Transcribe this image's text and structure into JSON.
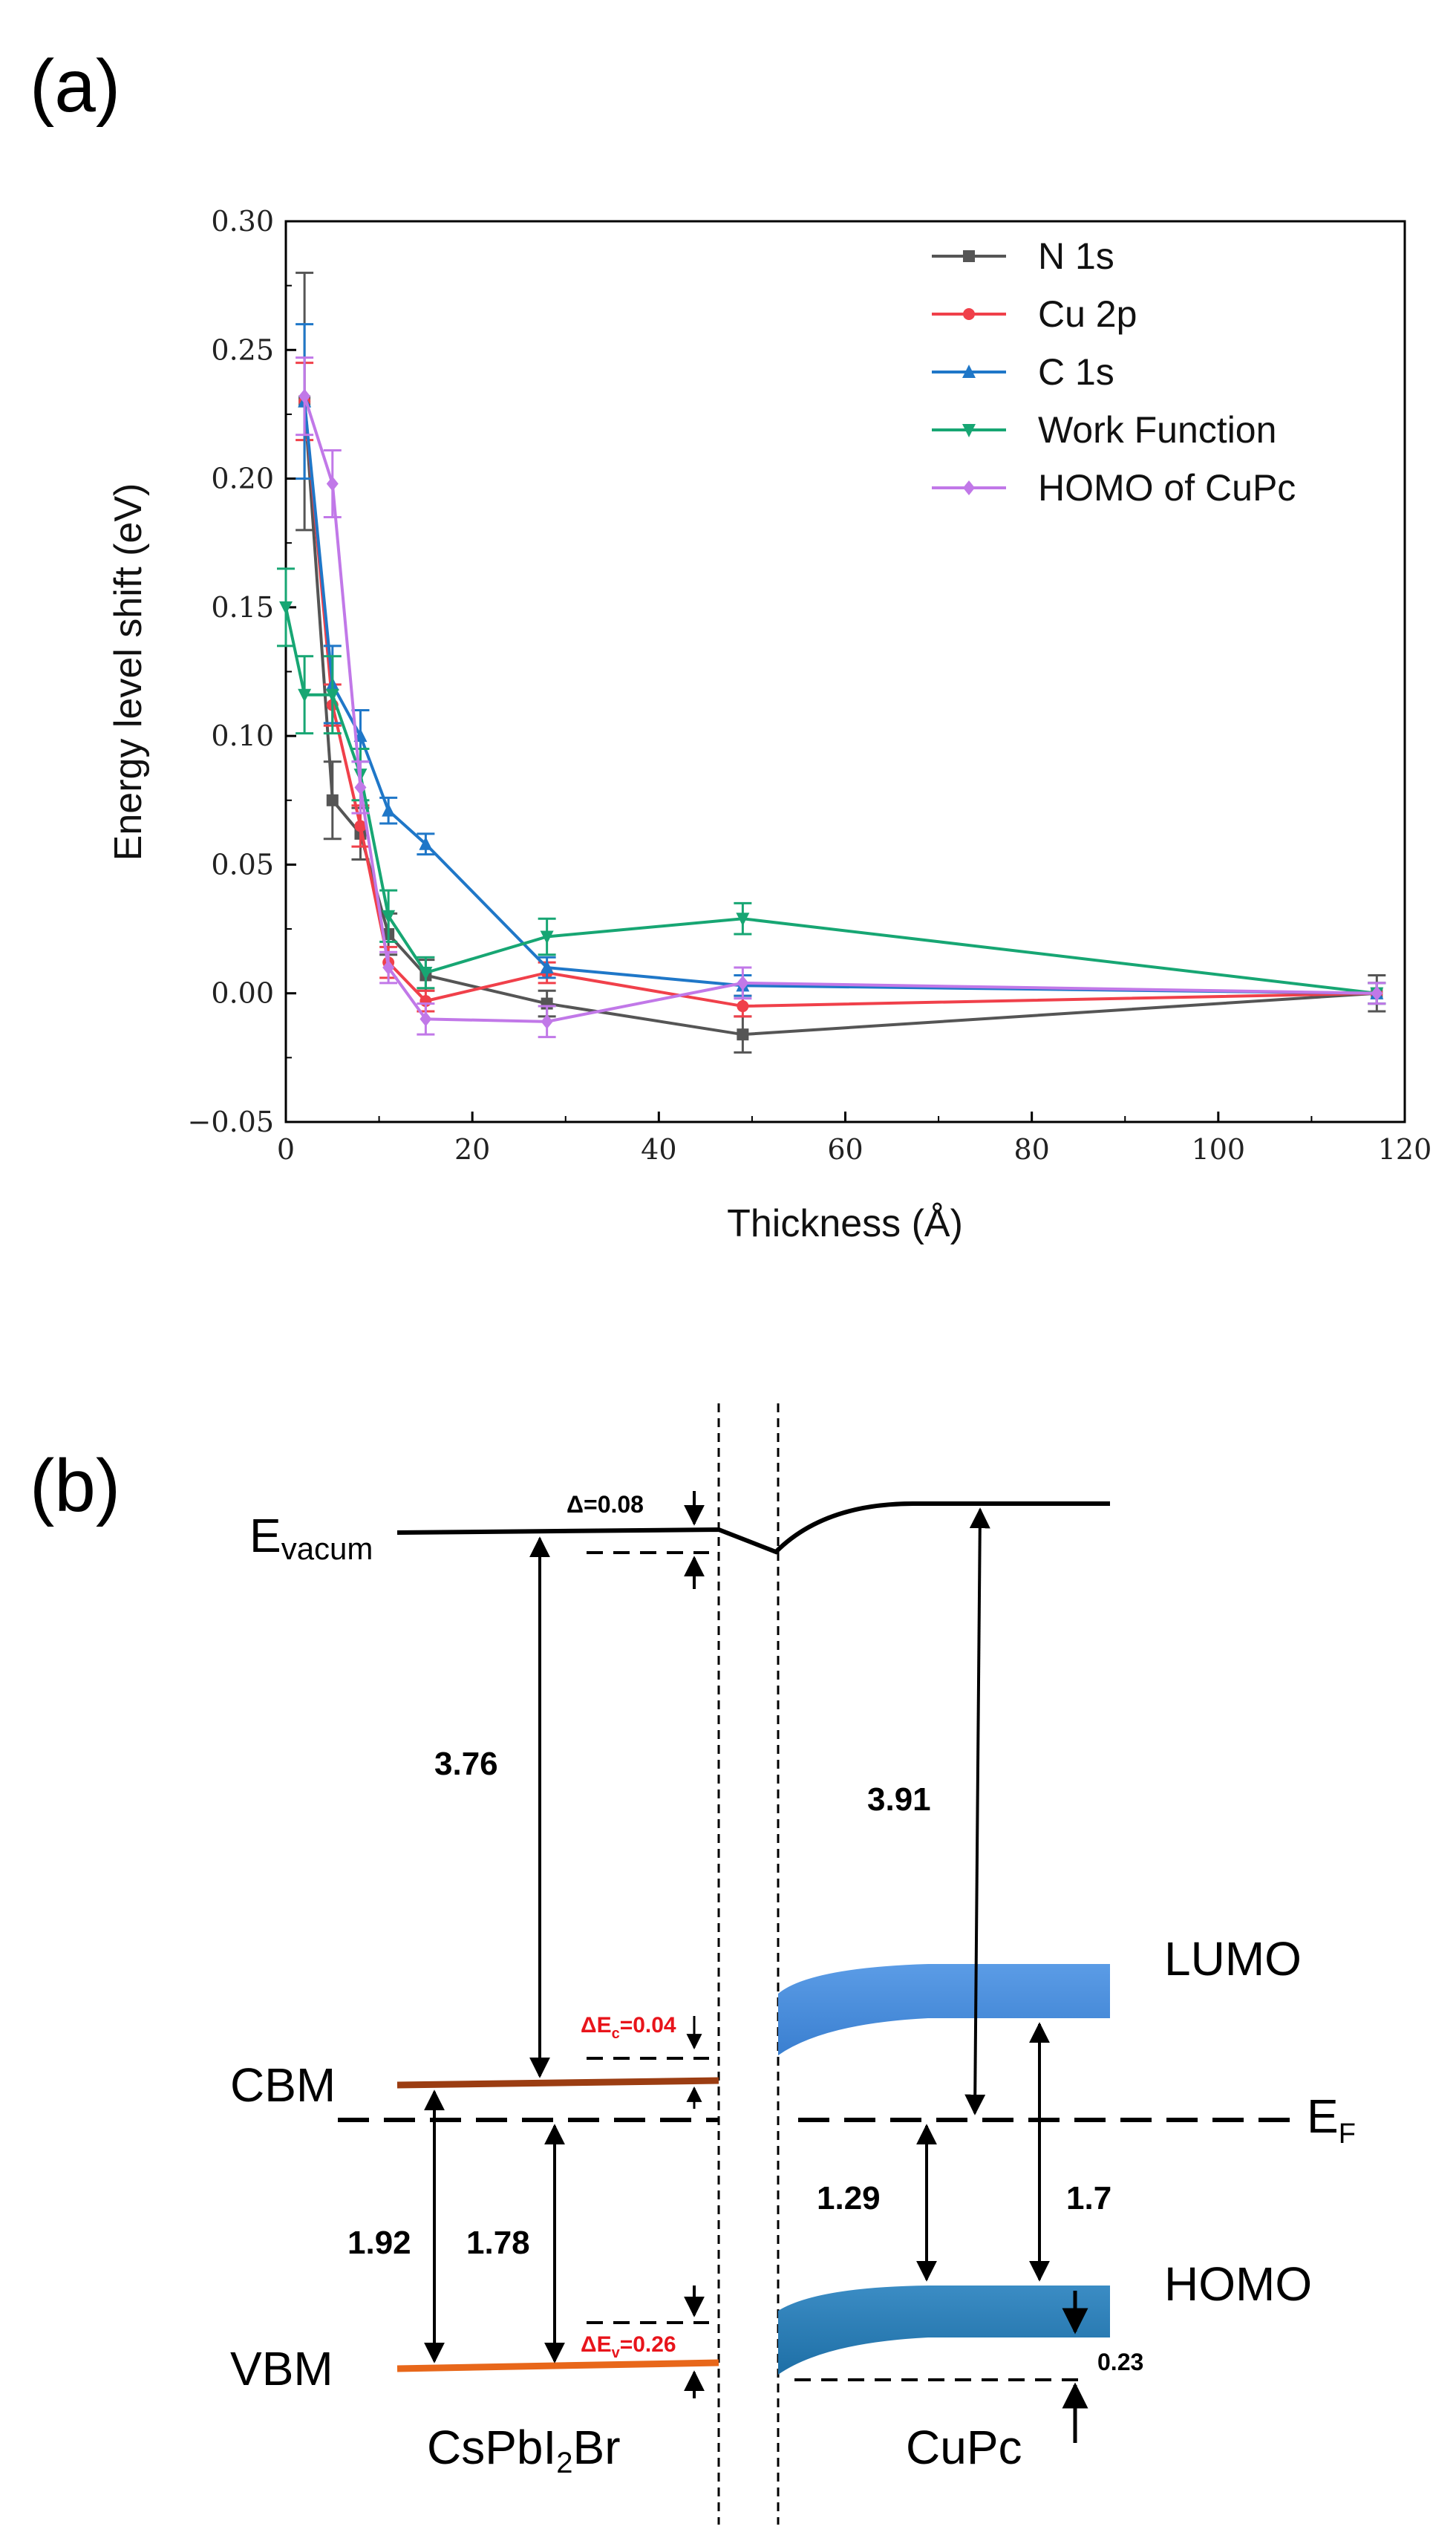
{
  "panel_a_label": "(a)",
  "panel_b_label": "(b)",
  "chart_data": {
    "type": "line",
    "title": "",
    "xlabel": "Thickness (Å)",
    "ylabel": "Energy level shift (eV)",
    "xlim": [
      0,
      120
    ],
    "ylim": [
      -0.05,
      0.3
    ],
    "xticks": [
      0,
      20,
      40,
      60,
      80,
      100,
      120
    ],
    "yticks": [
      -0.05,
      0.0,
      0.05,
      0.1,
      0.15,
      0.2,
      0.25,
      0.3
    ],
    "xtick_labels": [
      "0",
      "20",
      "40",
      "60",
      "80",
      "100",
      "120"
    ],
    "ytick_labels": [
      "−0.05",
      "0.00",
      "0.05",
      "0.10",
      "0.15",
      "0.20",
      "0.25",
      "0.30"
    ],
    "legend_position": "top-right",
    "series": [
      {
        "name": "N 1s",
        "color": "#555555",
        "marker": "square",
        "x": [
          2,
          5,
          8,
          11,
          15,
          28,
          49,
          117
        ],
        "y": [
          0.23,
          0.075,
          0.062,
          0.023,
          0.007,
          -0.004,
          -0.016,
          0.0
        ],
        "err": [
          0.05,
          0.015,
          0.01,
          0.008,
          0.006,
          0.005,
          0.007,
          0.007
        ]
      },
      {
        "name": "Cu 2p",
        "color": "#f0404a",
        "marker": "circle",
        "x": [
          2,
          5,
          8,
          11,
          15,
          28,
          49,
          117
        ],
        "y": [
          0.23,
          0.112,
          0.065,
          0.012,
          -0.003,
          0.008,
          -0.005,
          0.0
        ],
        "err": [
          0.015,
          0.008,
          0.008,
          0.006,
          0.004,
          0.004,
          0.004,
          0.004
        ]
      },
      {
        "name": "C 1s",
        "color": "#1f77c8",
        "marker": "triangle-up",
        "x": [
          2,
          5,
          8,
          11,
          15,
          28,
          49,
          117
        ],
        "y": [
          0.23,
          0.12,
          0.1,
          0.071,
          0.058,
          0.01,
          0.003,
          0.0
        ],
        "err": [
          0.03,
          0.015,
          0.01,
          0.005,
          0.004,
          0.004,
          0.004,
          0.004
        ]
      },
      {
        "name": "Work Function",
        "color": "#17a673",
        "marker": "triangle-down",
        "x": [
          0,
          2,
          5,
          8,
          11,
          15,
          28,
          49,
          117
        ],
        "y": [
          0.15,
          0.116,
          0.116,
          0.085,
          0.03,
          0.008,
          0.022,
          0.029,
          0.0
        ],
        "err": [
          0.015,
          0.015,
          0.015,
          0.01,
          0.01,
          0.006,
          0.007,
          0.006,
          0.004
        ]
      },
      {
        "name": "HOMO of CuPc",
        "color": "#c178e8",
        "marker": "diamond",
        "x": [
          2,
          5,
          8,
          11,
          15,
          28,
          49,
          117
        ],
        "y": [
          0.232,
          0.198,
          0.08,
          0.01,
          -0.01,
          -0.011,
          0.004,
          0.0
        ],
        "err": [
          0.015,
          0.013,
          0.01,
          0.006,
          0.006,
          0.006,
          0.006,
          0.004
        ]
      }
    ]
  },
  "diagram": {
    "evac_label": "E",
    "evac_sub": "vacum",
    "cbm_label": "CBM",
    "vbm_label": "VBM",
    "lumo_label": "LUMO",
    "homo_label": "HOMO",
    "ef_label": "E",
    "ef_sub": "F",
    "left_material_pre": "CsPbI",
    "left_material_sub": "2",
    "left_material_post": "Br",
    "right_material": "CuPc",
    "delta_vac": "Δ=0.08",
    "delta_ec_pre": "ΔE",
    "delta_ec_sub": "c",
    "delta_ec_post": "=0.04",
    "delta_ev_pre": "ΔE",
    "delta_ev_sub": "v",
    "delta_ev_post": "=0.26",
    "val_376": "3.76",
    "val_391": "3.91",
    "val_192": "1.92",
    "val_178": "1.78",
    "val_129": "1.29",
    "val_17": "1.7",
    "val_023": "0.23",
    "colors": {
      "cbm": "#9b3d12",
      "vbm": "#e8671a",
      "lumo": "#4a8fdc",
      "homo": "#2f7fb8",
      "red": "#e8141b"
    }
  }
}
